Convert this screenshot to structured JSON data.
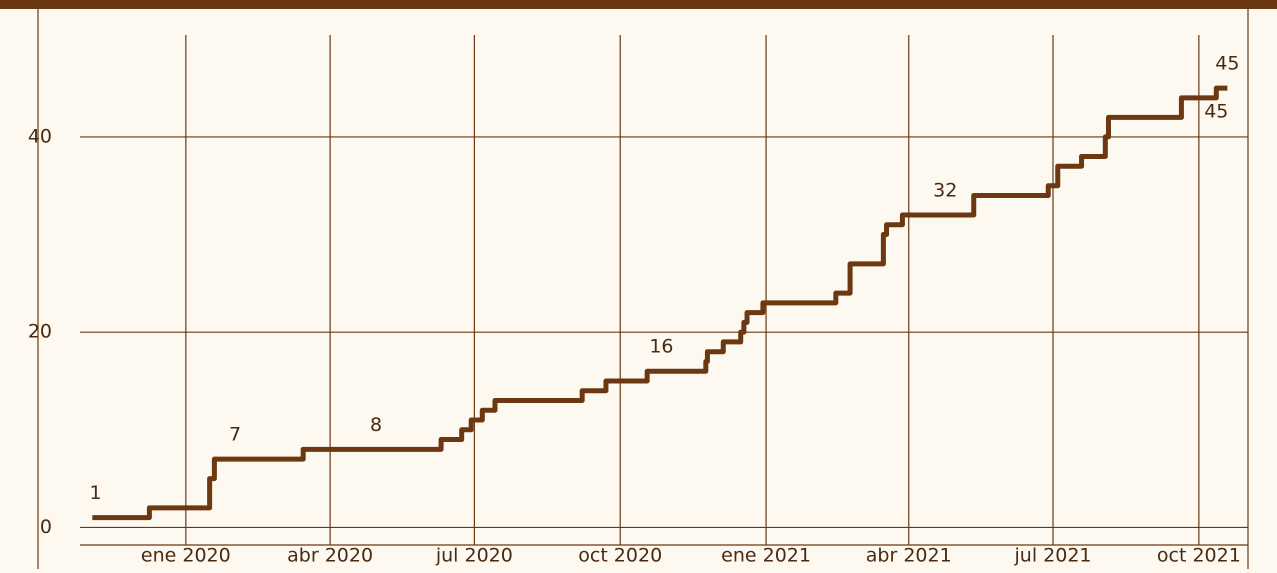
{
  "chart_data": {
    "type": "line",
    "step": "post",
    "color": "#6b3812",
    "grid": true,
    "x": [
      "2019-11-03",
      "2019-12-09",
      "2020-01-16",
      "2020-01-19",
      "2020-03-15",
      "2020-06-10",
      "2020-06-23",
      "2020-06-29",
      "2020-07-06",
      "2020-07-14",
      "2020-09-07",
      "2020-09-22",
      "2020-10-18",
      "2020-11-24",
      "2020-11-25",
      "2020-12-05",
      "2020-12-16",
      "2020-12-18",
      "2020-12-20",
      "2020-12-30",
      "2021-02-14",
      "2021-02-23",
      "2021-03-16",
      "2021-03-18",
      "2021-03-28",
      "2021-05-12",
      "2021-06-28",
      "2021-07-04",
      "2021-07-19",
      "2021-08-03",
      "2021-08-05",
      "2021-09-20",
      "2021-10-12",
      "2021-10-19"
    ],
    "values": [
      1,
      2,
      5,
      7,
      8,
      9,
      10,
      11,
      12,
      13,
      14,
      15,
      16,
      17,
      18,
      19,
      20,
      21,
      22,
      23,
      24,
      27,
      30,
      31,
      32,
      34,
      35,
      37,
      38,
      40,
      42,
      44,
      45,
      45
    ],
    "annotations": [
      {
        "x": "2019-11-05",
        "y": 1,
        "position": "above"
      },
      {
        "x": "2020-02-01",
        "y": 7,
        "position": "above"
      },
      {
        "x": "2020-04-30",
        "y": 8,
        "position": "above"
      },
      {
        "x": "2020-10-27",
        "y": 16,
        "position": "above"
      },
      {
        "x": "2021-04-24",
        "y": 32,
        "position": "above"
      },
      {
        "x": "2021-10-19",
        "y": 45,
        "position": "above"
      },
      {
        "x": "2021-10-12",
        "y": 45,
        "position": "below"
      }
    ],
    "xlim": [
      "2019-10-01",
      "2021-11-01"
    ],
    "xticks": [
      {
        "value": "2020-01-01",
        "label": "ene 2020"
      },
      {
        "value": "2020-04-01",
        "label": "abr 2020"
      },
      {
        "value": "2020-07-01",
        "label": "jul 2020"
      },
      {
        "value": "2020-10-01",
        "label": "oct 2020"
      },
      {
        "value": "2021-01-01",
        "label": "ene 2021"
      },
      {
        "value": "2021-04-01",
        "label": "abr 2021"
      },
      {
        "value": "2021-07-01",
        "label": "jul 2021"
      },
      {
        "value": "2021-10-01",
        "label": "oct 2021"
      }
    ],
    "ylim": [
      -1.8,
      53
    ],
    "yticks": [
      0,
      20,
      40
    ]
  }
}
